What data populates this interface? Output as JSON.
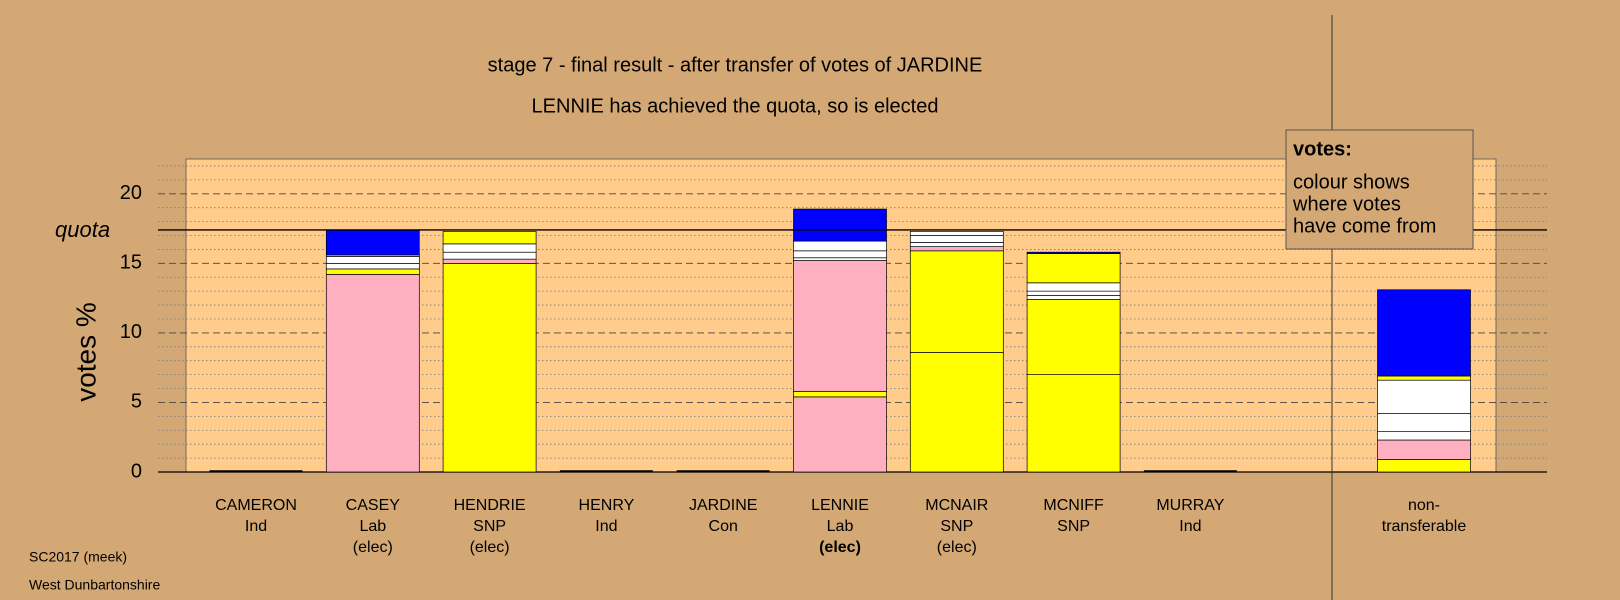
{
  "chart_data": {
    "type": "stacked-bar",
    "title": "stage 7 - final result - after transfer of votes of JARDINE",
    "subtitle": "LENNIE has achieved the quota, so is elected",
    "ylabel": "votes %",
    "ylim": [
      0,
      22.5
    ],
    "yticks": [
      0,
      5,
      10,
      15,
      20
    ],
    "yminorticks": [
      1,
      2,
      3,
      4,
      6,
      7,
      8,
      9,
      11,
      12,
      13,
      14,
      16,
      17,
      18,
      19,
      21,
      22
    ],
    "quota": {
      "label": "quota",
      "value": 17.4
    },
    "bars": [
      {
        "label": [
          "CAMERON",
          "Ind"
        ],
        "segments": [
          {
            "value": 0,
            "color": "#000000"
          }
        ]
      },
      {
        "label": [
          "CASEY",
          "Lab",
          "(elec)"
        ],
        "segments": [
          {
            "value": 14.2,
            "color": "#ffb0c0"
          },
          {
            "value": 0.4,
            "color": "#ffff00"
          },
          {
            "value": 0.4,
            "color": "#ffffff"
          },
          {
            "value": 0.5,
            "color": "#ffffff"
          },
          {
            "value": 0.1,
            "color": "#ffffff"
          },
          {
            "value": 1.8,
            "color": "#0000ff"
          }
        ]
      },
      {
        "label": [
          "HENDRIE",
          "SNP",
          "(elec)"
        ],
        "segments": [
          {
            "value": 15.0,
            "color": "#ffff00"
          },
          {
            "value": 0.3,
            "color": "#ffb0c0"
          },
          {
            "value": 0.5,
            "color": "#ffffff"
          },
          {
            "value": 0.6,
            "color": "#ffffff"
          },
          {
            "value": 0.9,
            "color": "#ffff00"
          }
        ]
      },
      {
        "label": [
          "HENRY",
          "Ind"
        ],
        "segments": [
          {
            "value": 0,
            "color": "#000000"
          }
        ]
      },
      {
        "label": [
          "JARDINE",
          "Con"
        ],
        "segments": [
          {
            "value": 0,
            "color": "#000000"
          }
        ]
      },
      {
        "label": [
          "LENNIE",
          "Lab",
          "(elec)"
        ],
        "highlight": true,
        "segments": [
          {
            "value": 5.4,
            "color": "#ffb0c0"
          },
          {
            "value": 0.4,
            "color": "#ffff00"
          },
          {
            "value": 9.4,
            "color": "#ffb0c0"
          },
          {
            "value": 0.2,
            "color": "#ffffff"
          },
          {
            "value": 0.5,
            "color": "#ffffff"
          },
          {
            "value": 0.7,
            "color": "#ffffff"
          },
          {
            "value": 2.3,
            "color": "#0000ff"
          }
        ]
      },
      {
        "label": [
          "MCNAIR",
          "SNP",
          "(elec)"
        ],
        "segments": [
          {
            "value": 8.6,
            "color": "#ffff00"
          },
          {
            "value": 7.3,
            "color": "#ffff00"
          },
          {
            "value": 0.3,
            "color": "#ffb0c0"
          },
          {
            "value": 0.3,
            "color": "#ffffff"
          },
          {
            "value": 0.5,
            "color": "#ffffff"
          },
          {
            "value": 0.3,
            "color": "#ffffff"
          }
        ]
      },
      {
        "label": [
          "MCNIFF",
          "SNP"
        ],
        "segments": [
          {
            "value": 7.0,
            "color": "#ffff00"
          },
          {
            "value": 5.4,
            "color": "#ffff00"
          },
          {
            "value": 0.3,
            "color": "#ffffff"
          },
          {
            "value": 0.3,
            "color": "#ffffff"
          },
          {
            "value": 0.6,
            "color": "#ffffff"
          },
          {
            "value": 2.1,
            "color": "#ffff00"
          },
          {
            "value": 0.1,
            "color": "#0000ff"
          }
        ]
      },
      {
        "label": [
          "MURRAY",
          "Ind"
        ],
        "segments": [
          {
            "value": 0,
            "color": "#000000"
          }
        ]
      },
      {
        "label": [
          "non-",
          "transferable"
        ],
        "separate": true,
        "segments": [
          {
            "value": 0.9,
            "color": "#ffff00"
          },
          {
            "value": 1.4,
            "color": "#ffb0c0"
          },
          {
            "value": 0.6,
            "color": "#ffffff"
          },
          {
            "value": 1.3,
            "color": "#ffffff"
          },
          {
            "value": 2.4,
            "color": "#ffffff"
          },
          {
            "value": 0.3,
            "color": "#ffff00"
          },
          {
            "value": 6.2,
            "color": "#0000ff"
          }
        ]
      }
    ],
    "legend": {
      "title": "votes:",
      "lines": [
        "colour shows",
        "where votes",
        "have come from"
      ]
    }
  },
  "footer": [
    "SC2017 (meek)",
    "West Dunbartonshire"
  ]
}
